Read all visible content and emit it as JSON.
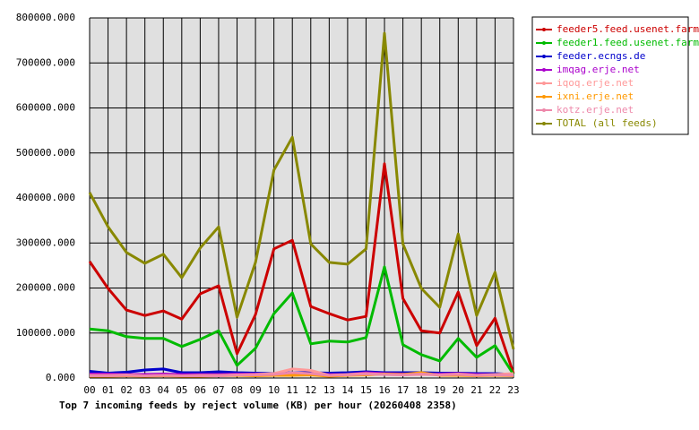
{
  "chart_data": {
    "type": "line",
    "title": "Top 7 incoming feeds by reject volume (KB) per hour (20260408 2358)",
    "categories": [
      "00",
      "01",
      "02",
      "03",
      "04",
      "05",
      "06",
      "07",
      "08",
      "09",
      "10",
      "11",
      "12",
      "13",
      "14",
      "15",
      "16",
      "17",
      "18",
      "19",
      "20",
      "21",
      "22",
      "23"
    ],
    "series": [
      {
        "name": "feeder5.feed.usenet.farm",
        "color": "#cc0000",
        "values": [
          259000,
          199000,
          151000,
          139000,
          149000,
          131000,
          187000,
          205000,
          54000,
          141000,
          287000,
          306000,
          159000,
          143000,
          129000,
          137000,
          476000,
          177000,
          105000,
          100000,
          191000,
          72000,
          133000,
          10000
        ]
      },
      {
        "name": "feeder1.feed.usenet.farm",
        "color": "#00bb00",
        "values": [
          109000,
          105000,
          92000,
          88000,
          88000,
          70000,
          86000,
          105000,
          28000,
          66000,
          143000,
          189000,
          76000,
          82000,
          80000,
          90000,
          247000,
          74000,
          52000,
          38000,
          88000,
          46000,
          72000,
          8000
        ]
      },
      {
        "name": "feeder.ecngs.de",
        "color": "#0000cc",
        "values": [
          15000,
          11000,
          13000,
          18000,
          20000,
          12000,
          12000,
          14000,
          12000,
          11000,
          10000,
          12000,
          12000,
          11000,
          12000,
          14000,
          12000,
          12000,
          12000,
          11000,
          11000,
          10000,
          10000,
          8000
        ]
      },
      {
        "name": "imqag.erje.net",
        "color": "#aa00cc",
        "values": [
          9000,
          9000,
          8000,
          8000,
          9000,
          8000,
          8000,
          8000,
          9000,
          9000,
          9000,
          10000,
          10000,
          8000,
          8000,
          12000,
          10000,
          9000,
          8000,
          9000,
          10000,
          8000,
          8000,
          7000
        ]
      },
      {
        "name": "iqoq.erje.net",
        "color": "#ff9999",
        "values": [
          6000,
          6000,
          7000,
          5000,
          6000,
          5000,
          6000,
          6000,
          7000,
          8000,
          10000,
          20000,
          17000,
          6000,
          8000,
          10000,
          8000,
          7000,
          8000,
          7000,
          9000,
          6000,
          8000,
          10000
        ]
      },
      {
        "name": "ixni.erje.net",
        "color": "#ff9900",
        "values": [
          4000,
          4000,
          5000,
          4000,
          5000,
          4000,
          4000,
          5000,
          6000,
          5000,
          6000,
          6000,
          7000,
          4000,
          6000,
          7000,
          9000,
          8000,
          12000,
          6000,
          6000,
          5000,
          6000,
          5000
        ]
      },
      {
        "name": "kotz.erje.net",
        "color": "#ee88aa",
        "values": [
          5000,
          5000,
          6000,
          5000,
          6000,
          5000,
          5000,
          5000,
          7000,
          7000,
          8000,
          12000,
          10000,
          6000,
          7000,
          9000,
          8000,
          7000,
          9000,
          7000,
          8000,
          6000,
          7000,
          6000
        ]
      },
      {
        "name": "TOTAL (all feeds)",
        "color": "#888800",
        "values": [
          412000,
          336000,
          279000,
          255000,
          275000,
          223000,
          289000,
          336000,
          135000,
          257000,
          462000,
          535000,
          298000,
          257000,
          253000,
          287000,
          766000,
          298000,
          199000,
          157000,
          320000,
          139000,
          235000,
          64000
        ]
      }
    ],
    "ylim": [
      0,
      800000
    ],
    "yticks": [
      {
        "value": 0,
        "label": "0.000"
      },
      {
        "value": 100000,
        "label": "100000.000"
      },
      {
        "value": 200000,
        "label": "200000.000"
      },
      {
        "value": 300000,
        "label": "300000.000"
      },
      {
        "value": 400000,
        "label": "400000.000"
      },
      {
        "value": 500000,
        "label": "500000.000"
      },
      {
        "value": 600000,
        "label": "600000.000"
      },
      {
        "value": 700000,
        "label": "700000.000"
      },
      {
        "value": 800000,
        "label": "800000.000"
      }
    ],
    "grid": true
  }
}
